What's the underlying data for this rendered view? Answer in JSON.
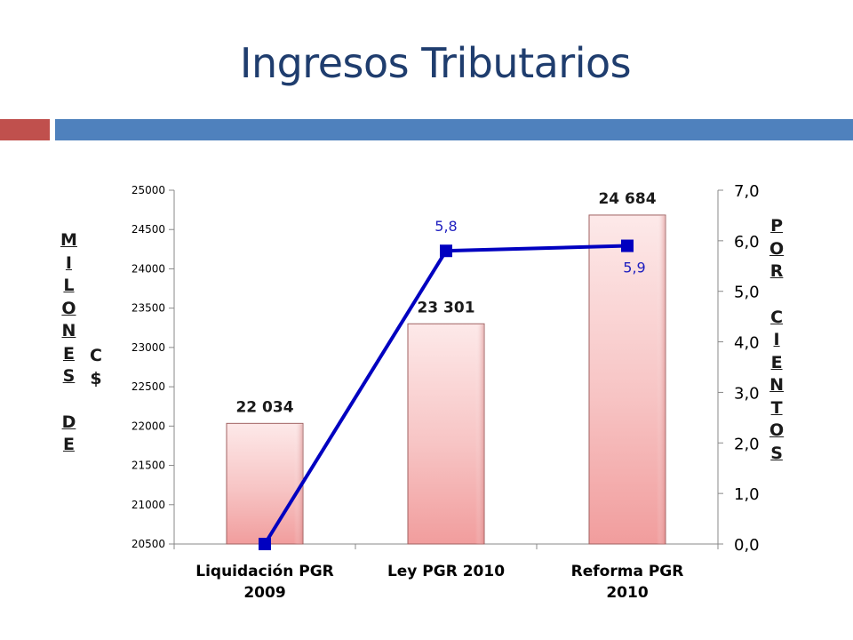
{
  "slide": {
    "title": "Ingresos Tributarios"
  },
  "y_label_left": {
    "letters_col1": [
      "M",
      "I",
      "L",
      "O",
      "N",
      "E",
      "S",
      "",
      "D",
      "E"
    ],
    "letters_col2": [
      "C",
      "$"
    ]
  },
  "y_label_right": {
    "letters": [
      "P",
      "O",
      "R",
      "",
      "C",
      "I",
      "E",
      "N",
      "T",
      "O",
      "S"
    ]
  },
  "chart_data": {
    "type": "bar",
    "categories": [
      [
        "Liquidación PGR",
        "2009"
      ],
      [
        "Ley PGR 2010"
      ],
      [
        "Reforma PGR",
        "2010"
      ]
    ],
    "series": [
      {
        "type": "bar",
        "axis": "left",
        "values": [
          22034,
          23301,
          24684
        ],
        "labels": [
          "22 034",
          "23 301",
          "24 684"
        ],
        "color": "#f4b8b8"
      },
      {
        "type": "line",
        "axis": "right",
        "values": [
          0.0,
          5.8,
          5.9
        ],
        "labels": [
          "",
          "5,8",
          "5,9"
        ],
        "color": "#0000c0"
      }
    ],
    "ylim": [
      20500,
      25000
    ],
    "yticks": [
      "20500",
      "21000",
      "21500",
      "22000",
      "22500",
      "23000",
      "23500",
      "24000",
      "24500",
      "25000"
    ],
    "y2lim": [
      0,
      7
    ],
    "y2ticks": [
      "0,0",
      "1,0",
      "2,0",
      "3,0",
      "4,0",
      "5,0",
      "6,0",
      "7,0"
    ],
    "grid": false,
    "legend": "none"
  }
}
